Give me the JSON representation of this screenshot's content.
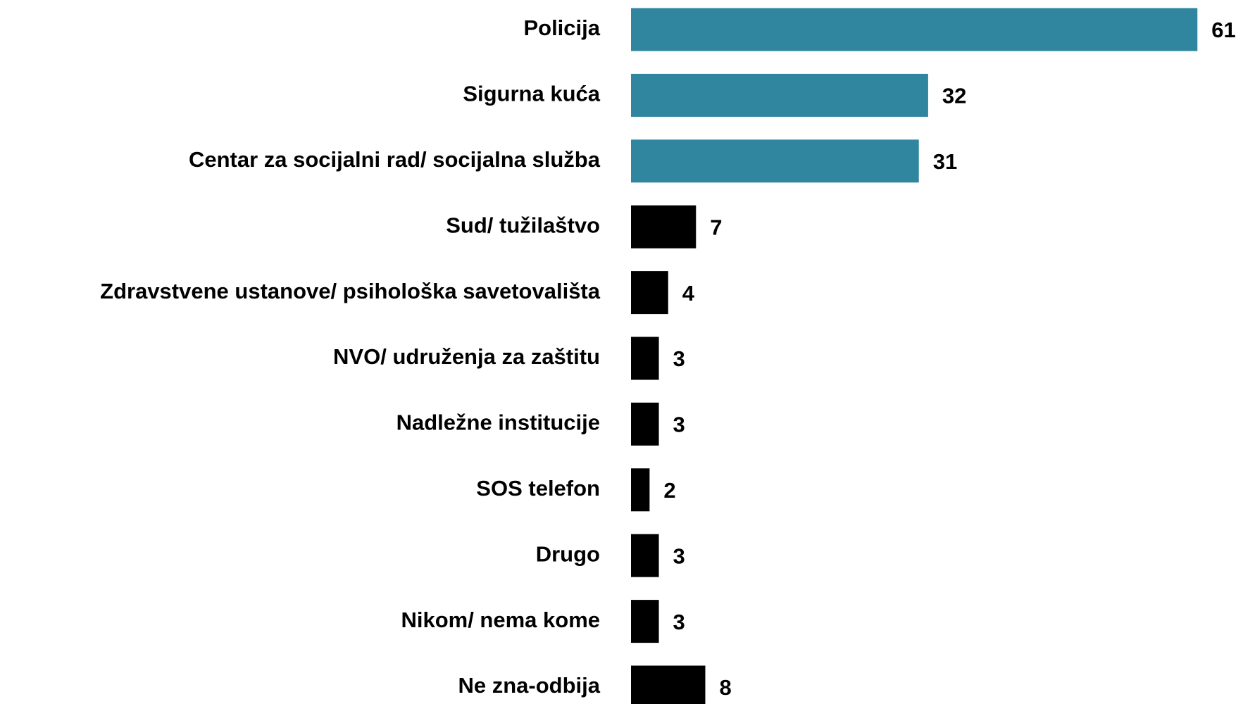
{
  "chart_data": {
    "type": "barh",
    "categories": [
      "Policija",
      "Sigurna kuća",
      "Centar za socijalni rad/ socijalna služba",
      "Sud/ tužilaštvo",
      "Zdravstvene ustanove/ psihološka savetovališta",
      "NVO/ udruženja za zaštitu",
      "Nadležne institucije",
      "SOS telefon",
      "Drugo",
      "Nikom/ nema kome",
      "Ne zna-odbija"
    ],
    "values": [
      61,
      32,
      31,
      7,
      4,
      3,
      3,
      2,
      3,
      3,
      8
    ],
    "colors": [
      "#31869f",
      "#31869f",
      "#31869f",
      "#000000",
      "#000000",
      "#000000",
      "#000000",
      "#000000",
      "#000000",
      "#000000",
      "#000000"
    ],
    "xlim": [
      0,
      65
    ]
  }
}
